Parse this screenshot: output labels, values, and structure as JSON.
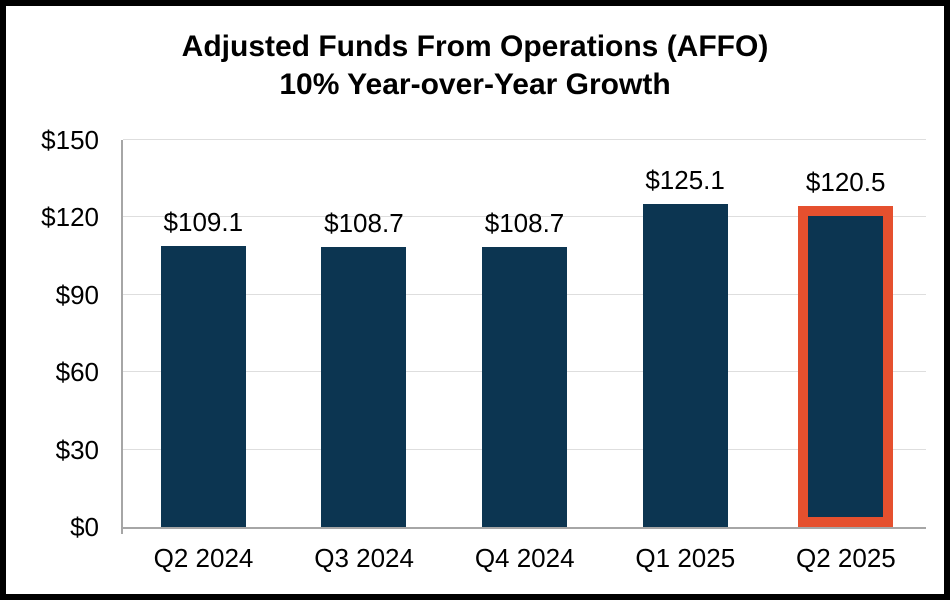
{
  "chart_data": {
    "type": "bar",
    "title": "Adjusted Funds From Operations (AFFO)",
    "subtitle": "10% Year-over-Year Growth",
    "categories": [
      "Q2 2024",
      "Q3 2024",
      "Q4 2024",
      "Q1 2025",
      "Q2 2025"
    ],
    "values": [
      109.1,
      108.7,
      108.7,
      125.1,
      120.5
    ],
    "value_labels": [
      "$109.1",
      "$108.7",
      "$108.7",
      "$125.1",
      "$120.5"
    ],
    "xlabel": "",
    "ylabel": "",
    "ylim": [
      0,
      150
    ],
    "yticks": [
      0,
      30,
      60,
      90,
      120,
      150
    ],
    "ytick_labels": [
      "$0",
      "$30",
      "$60",
      "$90",
      "$120",
      "$150"
    ],
    "grid": true,
    "legend": "none",
    "highlight_index": 4,
    "colors": {
      "bar_fill": "#0C3551",
      "highlight_border": "#E5502E",
      "gridline": "#DEDEDE",
      "axis_line": "#A6A6A6",
      "text": "#000000",
      "background": "#FFFFFF",
      "frame_border": "#000000"
    }
  }
}
